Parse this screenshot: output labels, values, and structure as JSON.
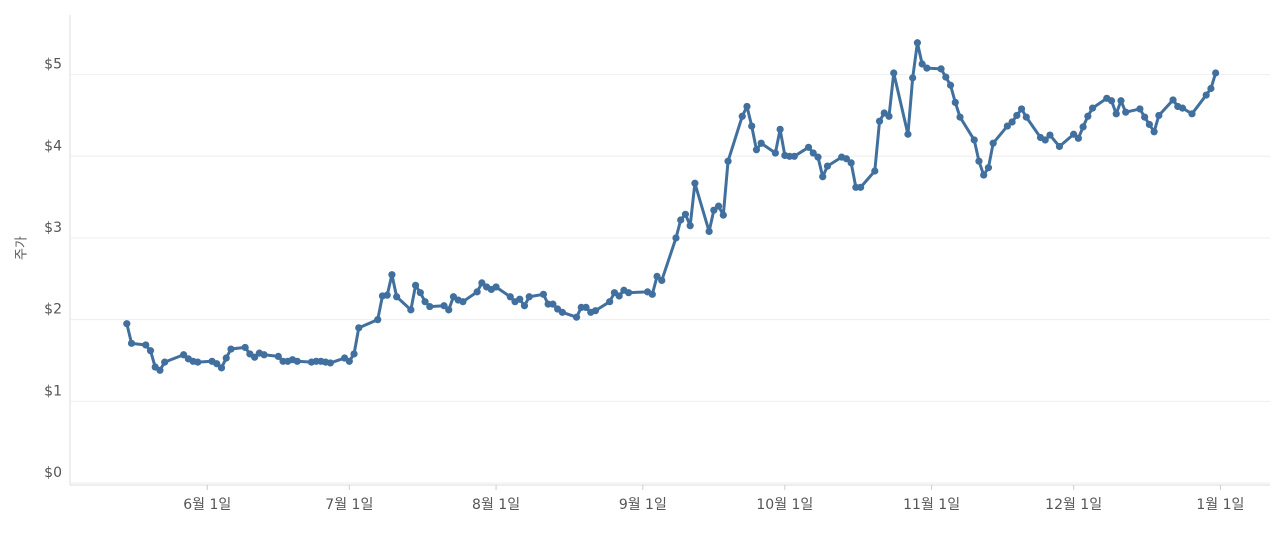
{
  "chart_data": {
    "type": "line",
    "y_label": "주가",
    "x": [
      "5월 15일",
      "5월 16일",
      "5월 19일",
      "5월 20일",
      "5월 21일",
      "5월 22일",
      "5월 23일",
      "5월 27일",
      "5월 28일",
      "5월 29일",
      "5월 30일",
      "6월 2일",
      "6월 3일",
      "6월 4일",
      "6월 5일",
      "6월 6일",
      "6월 9일",
      "6월 10일",
      "6월 11일",
      "6월 12일",
      "6월 13일",
      "6월 16일",
      "6월 17일",
      "6월 18일",
      "6월 19일",
      "6월 20일",
      "6월 23일",
      "6월 24일",
      "6월 25일",
      "6월 26일",
      "6월 27일",
      "6월 30일",
      "7월 1일",
      "7월 2일",
      "7월 3일",
      "7월 7일",
      "7월 8일",
      "7월 9일",
      "7월 10일",
      "7월 11일",
      "7월 14일",
      "7월 15일",
      "7월 16일",
      "7월 17일",
      "7월 18일",
      "7월 21일",
      "7월 22일",
      "7월 23일",
      "7월 24일",
      "7월 25일",
      "7월 28일",
      "7월 29일",
      "7월 30일",
      "7월 31일",
      "8월 1일",
      "8월 4일",
      "8월 5일",
      "8월 6일",
      "8월 7일",
      "8월 8일",
      "8월 11일",
      "8월 12일",
      "8월 13일",
      "8월 14일",
      "8월 15일",
      "8월 18일",
      "8월 19일",
      "8월 20일",
      "8월 21일",
      "8월 22일",
      "8월 25일",
      "8월 26일",
      "8월 27일",
      "8월 28일",
      "8월 29일",
      "9월 2일",
      "9월 3일",
      "9월 4일",
      "9월 5일",
      "9월 8일",
      "9월 9일",
      "9월 10일",
      "9월 11일",
      "9월 12일",
      "9월 15일",
      "9월 16일",
      "9월 17일",
      "9월 18일",
      "9월 19일",
      "9월 22일",
      "9월 23일",
      "9월 24일",
      "9월 25일",
      "9월 26일",
      "9월 29일",
      "9월 30일",
      "10월 1일",
      "10월 2일",
      "10월 3일",
      "10월 6일",
      "10월 7일",
      "10월 8일",
      "10월 9일",
      "10월 10일",
      "10월 13일",
      "10월 14일",
      "10월 15일",
      "10월 16일",
      "10월 17일",
      "10월 20일",
      "10월 21일",
      "10월 22일",
      "10월 23일",
      "10월 24일",
      "10월 27일",
      "10월 28일",
      "10월 29일",
      "10월 30일",
      "10월 31일",
      "11월 3일",
      "11월 4일",
      "11월 5일",
      "11월 6일",
      "11월 7일",
      "11월 10일",
      "11월 11일",
      "11월 12일",
      "11월 13일",
      "11월 14일",
      "11월 17일",
      "11월 18일",
      "11월 19일",
      "11월 20일",
      "11월 21일",
      "11월 24일",
      "11월 25일",
      "11월 26일",
      "11월 28일",
      "12월 1일",
      "12월 2일",
      "12월 3일",
      "12월 4일",
      "12월 5일",
      "12월 8일",
      "12월 9일",
      "12월 10일",
      "12월 11일",
      "12월 12일",
      "12월 15일",
      "12월 16일",
      "12월 17일",
      "12월 18일",
      "12월 19일",
      "12월 22일",
      "12월 23일",
      "12월 24일",
      "12월 26일",
      "12월 29일",
      "12월 30일",
      "12월 31일"
    ],
    "series": [
      {
        "color": "#41709f",
        "values": [
          1.95,
          1.71,
          1.69,
          1.62,
          1.42,
          1.38,
          1.48,
          1.57,
          1.52,
          1.49,
          1.48,
          1.49,
          1.46,
          1.41,
          1.53,
          1.64,
          1.66,
          1.58,
          1.54,
          1.59,
          1.57,
          1.55,
          1.49,
          1.49,
          1.51,
          1.49,
          1.48,
          1.49,
          1.49,
          1.48,
          1.47,
          1.53,
          1.49,
          1.58,
          1.9,
          2.0,
          2.29,
          2.3,
          2.55,
          2.28,
          2.12,
          2.42,
          2.33,
          2.22,
          2.16,
          2.17,
          2.12,
          2.28,
          2.24,
          2.22,
          2.34,
          2.45,
          2.4,
          2.37,
          2.4,
          2.28,
          2.22,
          2.25,
          2.17,
          2.28,
          2.31,
          2.19,
          2.19,
          2.13,
          2.09,
          2.03,
          2.15,
          2.15,
          2.09,
          2.11,
          2.22,
          2.33,
          2.29,
          2.36,
          2.33,
          2.34,
          2.31,
          2.53,
          2.48,
          3.0,
          3.22,
          3.29,
          3.15,
          3.67,
          3.08,
          3.34,
          3.39,
          3.28,
          3.94,
          4.49,
          4.61,
          4.37,
          4.08,
          4.16,
          4.04,
          4.33,
          4.01,
          4.0,
          4.0,
          4.11,
          4.04,
          3.99,
          3.75,
          3.88,
          3.99,
          3.97,
          3.92,
          3.62,
          3.62,
          3.82,
          4.43,
          4.53,
          4.49,
          5.02,
          4.27,
          4.96,
          5.39,
          5.13,
          5.08,
          5.07,
          4.97,
          4.87,
          4.66,
          4.48,
          4.2,
          3.94,
          3.77,
          3.86,
          4.16,
          4.37,
          4.42,
          4.5,
          4.58,
          4.48,
          4.23,
          4.2,
          4.26,
          4.12,
          4.27,
          4.22,
          4.36,
          4.49,
          4.59,
          4.71,
          4.68,
          4.52,
          4.68,
          4.54,
          4.58,
          4.48,
          4.39,
          4.3,
          4.5,
          4.69,
          4.61,
          4.59,
          4.52,
          4.75,
          4.83,
          5.02
        ]
      }
    ],
    "xlim": [
      "5월 3일",
      "1월 10일"
    ],
    "xticks": [
      "6월 1일",
      "7월 1일",
      "8월 1일",
      "9월 1일",
      "10월 1일",
      "11월 1일",
      "12월 1일",
      "1월 1일"
    ],
    "ylim": [
      0,
      5.73
    ],
    "yticks": [
      {
        "value": 0,
        "label": "$0"
      },
      {
        "value": 1,
        "label": "$1"
      },
      {
        "value": 2,
        "label": "$2"
      },
      {
        "value": 3,
        "label": "$3"
      },
      {
        "value": 4,
        "label": "$4"
      },
      {
        "value": 5,
        "label": "$5"
      }
    ],
    "grid": true
  }
}
